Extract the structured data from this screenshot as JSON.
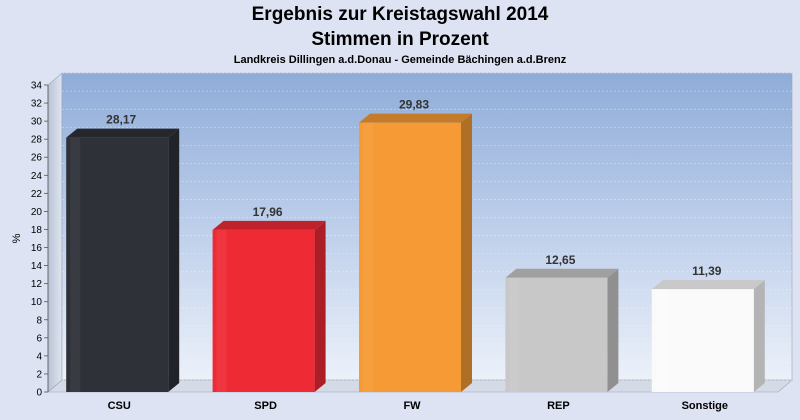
{
  "chart_data": {
    "type": "bar",
    "title": "Ergebnis zur Kreistagswahl 2014",
    "subtitle_line": "Stimmen in Prozent",
    "subtitle": "Landkreis Dillingen a.d.Donau - Gemeinde Bächingen a.d.Brenz",
    "ylabel": "%",
    "xlabel": "",
    "ylim": [
      0,
      34
    ],
    "ytick_step": 2,
    "grid": true,
    "categories": [
      "CSU",
      "SPD",
      "FW",
      "REP",
      "Sonstige"
    ],
    "values": [
      28.17,
      17.96,
      29.83,
      12.65,
      11.39
    ],
    "value_labels": [
      "28,17",
      "17,96",
      "29,83",
      "12,65",
      "11,39"
    ],
    "colors": [
      "#2e3138",
      "#ee2a35",
      "#f59a35",
      "#c8c8c8",
      "#fafafa"
    ]
  }
}
